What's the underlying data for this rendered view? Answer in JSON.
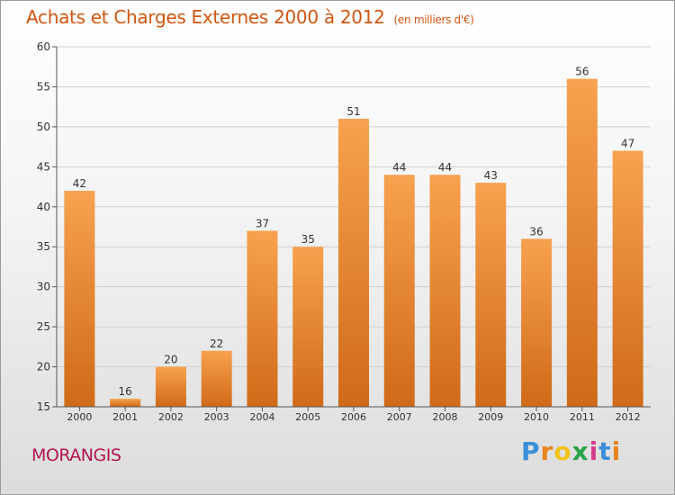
{
  "title": "Achats et Charges Externes 2000 à 2012",
  "unit_label": "(en milliers d'€)",
  "commune": "MORANGIS",
  "logo": {
    "letters": [
      "P",
      "r",
      "o",
      "x",
      "i",
      "t",
      "i"
    ],
    "colors": [
      "#3a8fd8",
      "#e8841c",
      "#f2c21b",
      "#2aa24a",
      "#d63c8d",
      "#3a8fd8",
      "#e8841c"
    ]
  },
  "colors": {
    "bar": "#f28a30",
    "accent": "#d2550f",
    "commune": "#b31452"
  },
  "chart_data": {
    "type": "bar",
    "categories": [
      "2000",
      "2001",
      "2002",
      "2003",
      "2004",
      "2005",
      "2006",
      "2007",
      "2008",
      "2009",
      "2010",
      "2011",
      "2012"
    ],
    "values": [
      42,
      16,
      20,
      22,
      37,
      35,
      51,
      44,
      44,
      43,
      36,
      56,
      47
    ],
    "data_labels": [
      "42",
      "16",
      "20",
      "22",
      "37",
      "35",
      "51",
      "44",
      "44",
      "43",
      "36",
      "56",
      "47"
    ],
    "ylim": [
      15,
      60
    ],
    "yticks": [
      15,
      20,
      25,
      30,
      35,
      40,
      45,
      50,
      55,
      60
    ],
    "ytick_labels": [
      "15",
      "20",
      "25",
      "30",
      "35",
      "40",
      "45",
      "50",
      "55",
      "60"
    ],
    "grid": true,
    "legend": "none"
  }
}
